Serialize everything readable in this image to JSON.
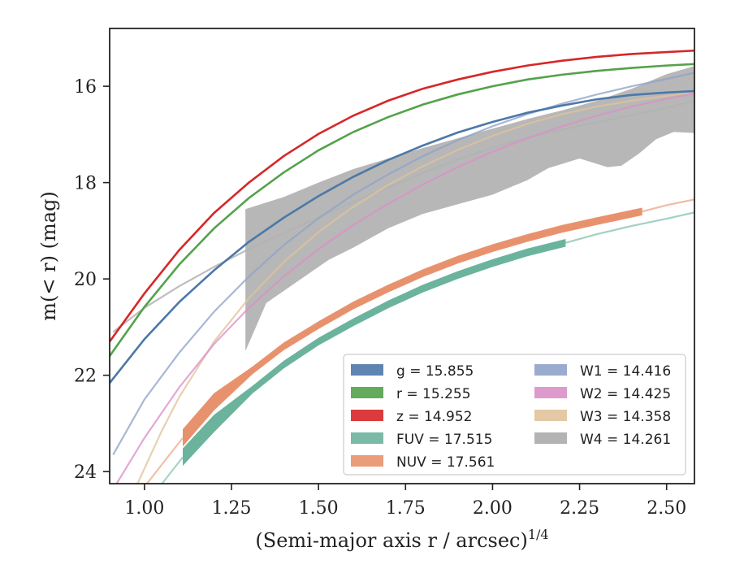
{
  "chart_data": {
    "type": "line",
    "xlabel": "(Semi-major axis r / arcsec)",
    "xlabel_superscript": "1/4",
    "ylabel": "m(< r) (mag)",
    "xlim": [
      0.9,
      2.58
    ],
    "ylim": [
      24.25,
      14.8
    ],
    "y_inverted": true,
    "x_ticks": [
      1.0,
      1.25,
      1.5,
      1.75,
      2.0,
      2.25,
      2.5
    ],
    "x_tick_labels": [
      "1.00",
      "1.25",
      "1.50",
      "1.75",
      "2.00",
      "2.25",
      "2.50"
    ],
    "y_ticks": [
      16,
      18,
      20,
      22,
      24
    ],
    "y_tick_labels": [
      "16",
      "18",
      "20",
      "22",
      "24"
    ],
    "grid": false,
    "legend_position": "lower-right",
    "series": [
      {
        "name": "g = 15.855",
        "legend_label": "g = 15.855",
        "color": "#4c78a8",
        "style": "line",
        "values": [
          [
            0.9,
            22.16
          ],
          [
            1.0,
            21.25
          ],
          [
            1.1,
            20.48
          ],
          [
            1.2,
            19.82
          ],
          [
            1.3,
            19.23
          ],
          [
            1.4,
            18.73
          ],
          [
            1.5,
            18.28
          ],
          [
            1.6,
            17.88
          ],
          [
            1.7,
            17.53
          ],
          [
            1.8,
            17.23
          ],
          [
            1.9,
            16.96
          ],
          [
            2.0,
            16.74
          ],
          [
            2.1,
            16.55
          ],
          [
            2.2,
            16.4
          ],
          [
            2.3,
            16.27
          ],
          [
            2.4,
            16.18
          ],
          [
            2.5,
            16.13
          ],
          [
            2.58,
            16.1
          ]
        ]
      },
      {
        "name": "r = 15.255",
        "legend_label": "r = 15.255",
        "color": "#54a24b",
        "style": "line",
        "values": [
          [
            0.9,
            21.6
          ],
          [
            1.0,
            20.58
          ],
          [
            1.1,
            19.7
          ],
          [
            1.2,
            18.95
          ],
          [
            1.3,
            18.32
          ],
          [
            1.4,
            17.79
          ],
          [
            1.5,
            17.33
          ],
          [
            1.6,
            16.95
          ],
          [
            1.7,
            16.64
          ],
          [
            1.8,
            16.38
          ],
          [
            1.9,
            16.17
          ],
          [
            2.0,
            16.0
          ],
          [
            2.1,
            15.86
          ],
          [
            2.2,
            15.76
          ],
          [
            2.3,
            15.68
          ],
          [
            2.4,
            15.62
          ],
          [
            2.5,
            15.57
          ],
          [
            2.58,
            15.54
          ]
        ]
      },
      {
        "name": "z = 14.952",
        "legend_label": "z = 14.952",
        "color": "#d62728",
        "style": "line",
        "values": [
          [
            0.9,
            21.3
          ],
          [
            1.0,
            20.3
          ],
          [
            1.1,
            19.4
          ],
          [
            1.2,
            18.63
          ],
          [
            1.3,
            18.0
          ],
          [
            1.4,
            17.45
          ],
          [
            1.5,
            16.99
          ],
          [
            1.6,
            16.61
          ],
          [
            1.7,
            16.3
          ],
          [
            1.8,
            16.05
          ],
          [
            1.9,
            15.86
          ],
          [
            2.0,
            15.7
          ],
          [
            2.1,
            15.57
          ],
          [
            2.2,
            15.47
          ],
          [
            2.3,
            15.39
          ],
          [
            2.4,
            15.33
          ],
          [
            2.5,
            15.29
          ],
          [
            2.58,
            15.26
          ]
        ]
      },
      {
        "name": "FUV = 17.515",
        "legend_label": "FUV = 17.515",
        "color": "#6bb39d",
        "style": "band",
        "segment_end": 2.21,
        "values": [
          [
            1.11,
            23.7
          ],
          [
            1.2,
            23.0
          ],
          [
            1.31,
            22.3
          ],
          [
            1.4,
            21.78
          ],
          [
            1.5,
            21.3
          ],
          [
            1.6,
            20.9
          ],
          [
            1.7,
            20.53
          ],
          [
            1.8,
            20.2
          ],
          [
            1.9,
            19.92
          ],
          [
            2.0,
            19.67
          ],
          [
            2.1,
            19.45
          ],
          [
            2.21,
            19.25
          ],
          [
            2.3,
            19.07
          ],
          [
            2.4,
            18.9
          ],
          [
            2.5,
            18.75
          ],
          [
            2.58,
            18.62
          ]
        ]
      },
      {
        "name": "NUV = 17.561",
        "legend_label": "NUV = 17.561",
        "color": "#e8926d",
        "style": "band",
        "segment_end": 2.43,
        "values": [
          [
            1.11,
            23.3
          ],
          [
            1.2,
            22.55
          ],
          [
            1.31,
            21.9
          ],
          [
            1.4,
            21.4
          ],
          [
            1.5,
            20.96
          ],
          [
            1.6,
            20.55
          ],
          [
            1.7,
            20.2
          ],
          [
            1.8,
            19.88
          ],
          [
            1.9,
            19.6
          ],
          [
            2.0,
            19.36
          ],
          [
            2.1,
            19.15
          ],
          [
            2.2,
            18.96
          ],
          [
            2.3,
            18.8
          ],
          [
            2.43,
            18.6
          ],
          [
            2.5,
            18.47
          ],
          [
            2.58,
            18.35
          ]
        ]
      },
      {
        "name": "W1 = 14.416",
        "legend_label": "W1 = 14.416",
        "color": "#8fa3c9",
        "style": "line",
        "values": [
          [
            0.91,
            23.65
          ],
          [
            1.0,
            22.5
          ],
          [
            1.1,
            21.53
          ],
          [
            1.2,
            20.68
          ],
          [
            1.3,
            19.95
          ],
          [
            1.4,
            19.3
          ],
          [
            1.5,
            18.74
          ],
          [
            1.6,
            18.25
          ],
          [
            1.7,
            17.83
          ],
          [
            1.8,
            17.45
          ],
          [
            1.9,
            17.12
          ],
          [
            2.0,
            16.83
          ],
          [
            2.1,
            16.58
          ],
          [
            2.2,
            16.36
          ],
          [
            2.3,
            16.17
          ],
          [
            2.4,
            16.0
          ],
          [
            2.5,
            15.85
          ],
          [
            2.58,
            15.72
          ]
        ]
      },
      {
        "name": "W2 = 14.425",
        "legend_label": "W2 = 14.425",
        "color": "#dc8fc8",
        "style": "line",
        "values": [
          [
            0.92,
            24.25
          ],
          [
            1.0,
            23.3
          ],
          [
            1.1,
            22.25
          ],
          [
            1.2,
            21.35
          ],
          [
            1.3,
            20.6
          ],
          [
            1.4,
            19.95
          ],
          [
            1.5,
            19.38
          ],
          [
            1.6,
            18.88
          ],
          [
            1.7,
            18.44
          ],
          [
            1.8,
            18.04
          ],
          [
            1.9,
            17.68
          ],
          [
            2.0,
            17.36
          ],
          [
            2.1,
            17.08
          ],
          [
            2.2,
            16.83
          ],
          [
            2.3,
            16.61
          ],
          [
            2.4,
            16.42
          ],
          [
            2.5,
            16.26
          ],
          [
            2.58,
            16.15
          ]
        ]
      },
      {
        "name": "W3 = 14.358",
        "legend_label": "W3 = 14.358",
        "color": "#e0c39b",
        "style": "line",
        "values": [
          [
            0.98,
            24.25
          ],
          [
            1.05,
            23.15
          ],
          [
            1.1,
            22.45
          ],
          [
            1.2,
            21.3
          ],
          [
            1.3,
            20.4
          ],
          [
            1.4,
            19.65
          ],
          [
            1.5,
            19.03
          ],
          [
            1.6,
            18.5
          ],
          [
            1.7,
            18.05
          ],
          [
            1.8,
            17.66
          ],
          [
            1.9,
            17.32
          ],
          [
            2.0,
            17.03
          ],
          [
            2.1,
            16.78
          ],
          [
            2.2,
            16.58
          ],
          [
            2.3,
            16.42
          ],
          [
            2.4,
            16.3
          ],
          [
            2.5,
            16.2
          ],
          [
            2.58,
            16.12
          ]
        ]
      },
      {
        "name": "W4 = 14.261",
        "legend_label": "W4 = 14.261",
        "color": "#b3b3b3",
        "style": "filled_band",
        "line_values": [
          [
            0.91,
            21.1
          ],
          [
            1.0,
            20.6
          ],
          [
            1.1,
            20.15
          ],
          [
            1.2,
            19.75
          ],
          [
            1.3,
            19.38
          ],
          [
            1.4,
            19.05
          ],
          [
            1.5,
            18.72
          ],
          [
            1.6,
            18.4
          ],
          [
            1.7,
            18.1
          ],
          [
            1.8,
            17.8
          ],
          [
            1.9,
            17.52
          ],
          [
            2.0,
            17.28
          ],
          [
            2.1,
            17.07
          ],
          [
            2.2,
            16.9
          ],
          [
            2.3,
            16.75
          ],
          [
            2.4,
            16.6
          ],
          [
            2.5,
            16.45
          ],
          [
            2.58,
            16.3
          ]
        ],
        "band_upper": [
          [
            1.29,
            18.55
          ],
          [
            1.4,
            18.3
          ],
          [
            1.5,
            18.0
          ],
          [
            1.6,
            17.72
          ],
          [
            1.7,
            17.5
          ],
          [
            1.8,
            17.28
          ],
          [
            1.9,
            17.08
          ],
          [
            2.0,
            16.88
          ],
          [
            2.1,
            16.68
          ],
          [
            2.2,
            16.5
          ],
          [
            2.3,
            16.3
          ],
          [
            2.4,
            16.05
          ],
          [
            2.5,
            15.75
          ],
          [
            2.58,
            15.58
          ]
        ],
        "band_lower": [
          [
            1.29,
            21.5
          ],
          [
            1.35,
            20.5
          ],
          [
            1.45,
            20.0
          ],
          [
            1.53,
            19.6
          ],
          [
            1.6,
            19.35
          ],
          [
            1.7,
            18.95
          ],
          [
            1.8,
            18.65
          ],
          [
            1.9,
            18.45
          ],
          [
            2.0,
            18.25
          ],
          [
            2.1,
            17.95
          ],
          [
            2.16,
            17.7
          ],
          [
            2.25,
            17.5
          ],
          [
            2.33,
            17.68
          ],
          [
            2.37,
            17.65
          ],
          [
            2.42,
            17.4
          ],
          [
            2.47,
            17.1
          ],
          [
            2.52,
            16.95
          ],
          [
            2.58,
            16.97
          ]
        ]
      }
    ],
    "legend": {
      "column_1": [
        {
          "label": "g = 15.855",
          "color": "#4c78a8"
        },
        {
          "label": "r = 15.255",
          "color": "#54a24b"
        },
        {
          "label": "z = 14.952",
          "color": "#d62728"
        },
        {
          "label": "FUV = 17.515",
          "color": "#6bb39d"
        },
        {
          "label": "NUV = 17.561",
          "color": "#e8926d"
        }
      ],
      "column_2": [
        {
          "label": "W1 = 14.416",
          "color": "#8fa3c9"
        },
        {
          "label": "W2 = 14.425",
          "color": "#dc8fc8"
        },
        {
          "label": "W3 = 14.358",
          "color": "#e0c39b"
        },
        {
          "label": "W4 = 14.261",
          "color": "#b3b3b3"
        }
      ]
    }
  }
}
